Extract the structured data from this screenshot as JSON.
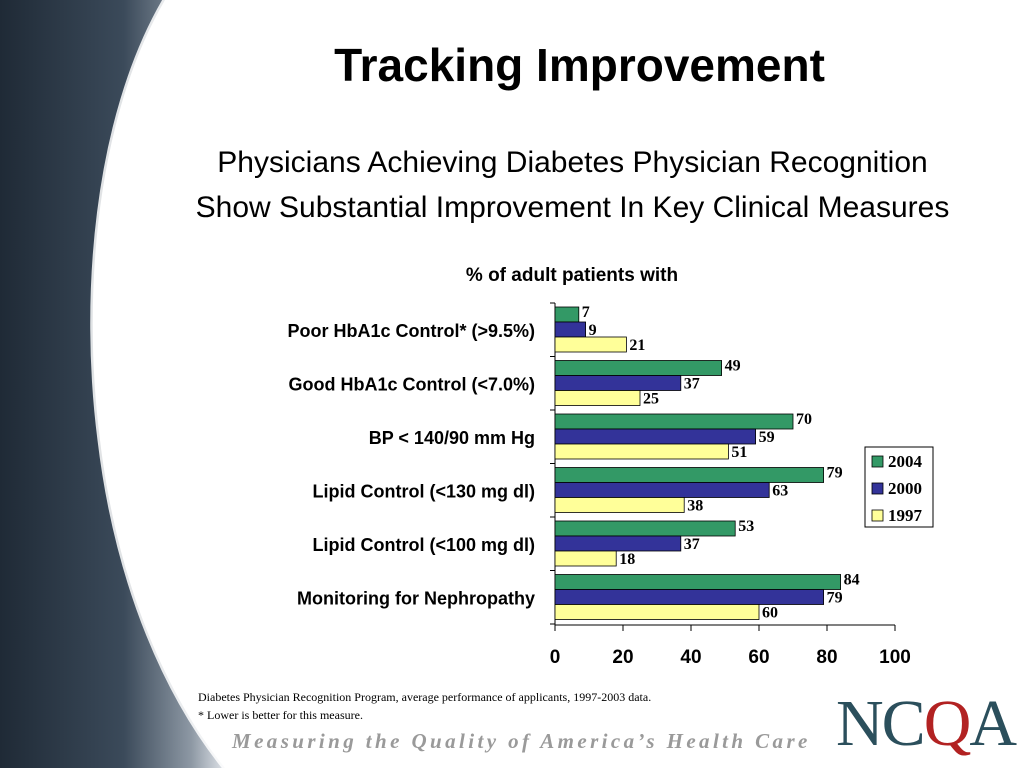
{
  "title": "Tracking Improvement",
  "subtitle_line1": "Physicians Achieving Diabetes Physician Recognition",
  "subtitle_line2": "Show Substantial Improvement In Key Clinical Measures",
  "footnotes": [
    "Diabetes Physician Recognition Program, average performance of applicants, 1997-2003 data.",
    "* Lower is better for this measure."
  ],
  "tagline": "Measuring the Quality of America’s Health Care",
  "logo": {
    "text": "NCQA"
  },
  "colors": {
    "2004": "#339966",
    "2000": "#333399",
    "1997": "#ffff99"
  },
  "chart_data": {
    "type": "bar",
    "orientation": "horizontal",
    "title": "% of adult patients with",
    "categories": [
      "Poor HbA1c Control* (>9.5%)",
      "Good HbA1c Control (<7.0%)",
      "BP < 140/90 mm Hg",
      "Lipid Control (<130 mg dl)",
      "Lipid Control (<100 mg dl)",
      "Monitoring for Nephropathy"
    ],
    "series": [
      {
        "name": "2004",
        "values": [
          7,
          49,
          70,
          79,
          53,
          84
        ]
      },
      {
        "name": "2000",
        "values": [
          9,
          37,
          59,
          63,
          37,
          79
        ]
      },
      {
        "name": "1997",
        "values": [
          21,
          25,
          51,
          38,
          18,
          60
        ]
      }
    ],
    "xlim": [
      0,
      100
    ],
    "xticks": [
      0,
      20,
      40,
      60,
      80,
      100
    ],
    "legend_position": "right",
    "grid": false
  }
}
